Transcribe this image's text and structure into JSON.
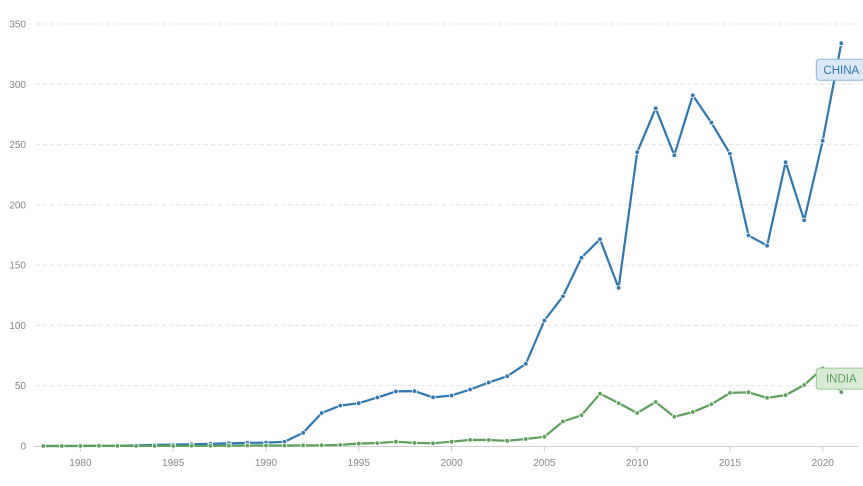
{
  "chart_data": {
    "type": "line",
    "x": [
      1978,
      1979,
      1980,
      1981,
      1982,
      1983,
      1984,
      1985,
      1986,
      1987,
      1988,
      1989,
      1990,
      1991,
      1992,
      1993,
      1994,
      1995,
      1996,
      1997,
      1998,
      1999,
      2000,
      2001,
      2002,
      2003,
      2004,
      2005,
      2006,
      2007,
      2008,
      2009,
      2010,
      2011,
      2012,
      2013,
      2014,
      2015,
      2016,
      2017,
      2018,
      2019,
      2020,
      2021
    ],
    "series": [
      {
        "name": "CHINA",
        "color": "#2e77b0",
        "label_bg": "#dbe9f6",
        "label_border": "#8ab6d9",
        "values": [
          0.0,
          0.0,
          0.1,
          0.1,
          0.2,
          0.5,
          0.9,
          1.2,
          1.5,
          1.8,
          2.2,
          2.6,
          2.8,
          3.5,
          10.9,
          27.4,
          33.5,
          35.5,
          40.2,
          45.3,
          45.5,
          40.3,
          41.9,
          46.9,
          52.7,
          57.9,
          68.1,
          104.1,
          124.1,
          156.2,
          171.5,
          131.1,
          243.7,
          280.1,
          241.2,
          290.9,
          268.1,
          242.5,
          174.7,
          166.1,
          235.4,
          187.2,
          253.1,
          334.0
        ]
      },
      {
        "name": "INDIA",
        "color": "#5da05c",
        "label_bg": "#d9ecd5",
        "label_border": "#9cc99a",
        "values": [
          0.0,
          0.0,
          0.0,
          0.1,
          0.1,
          0.1,
          0.1,
          0.1,
          0.2,
          0.2,
          0.3,
          0.4,
          0.4,
          0.4,
          0.5,
          0.6,
          0.9,
          2.1,
          2.4,
          3.6,
          2.6,
          2.2,
          3.6,
          5.1,
          5.0,
          4.3,
          5.8,
          7.6,
          20.3,
          25.5,
          43.4,
          35.6,
          27.4,
          36.5,
          24.2,
          28.2,
          34.6,
          44.0,
          44.5,
          39.9,
          42.2,
          50.6,
          64.4,
          44.7
        ]
      }
    ],
    "x_ticks": [
      "1980",
      "1985",
      "1990",
      "1995",
      "2000",
      "2005",
      "2010",
      "2015",
      "2020"
    ],
    "y_ticks": [
      "0",
      "50",
      "100",
      "150",
      "200",
      "250",
      "300",
      "350"
    ],
    "xlim": [
      1977.5,
      2021.9
    ],
    "ylim": [
      0,
      350
    ],
    "grid": "horizontal dashed",
    "legend": "none"
  }
}
